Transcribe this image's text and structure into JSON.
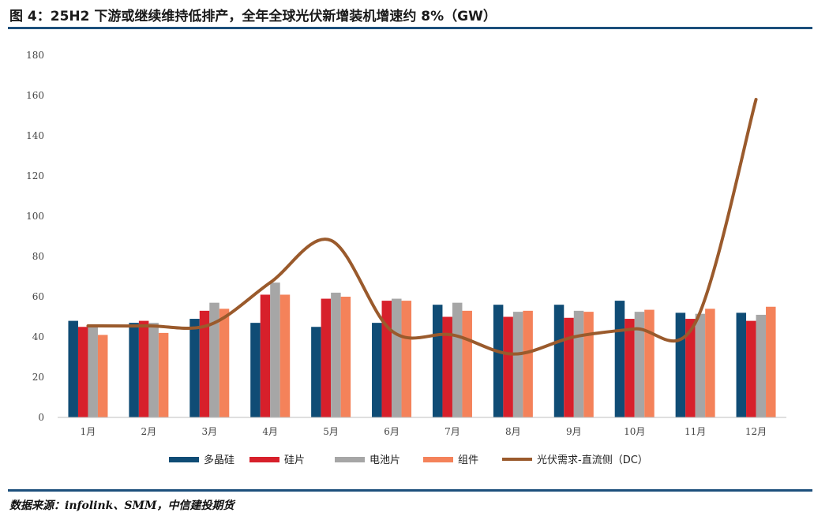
{
  "title": "图 4：25H2 下游或继续维持低排产，全年全球光伏新增装机增速约 8%（GW）",
  "source": "数据来源：infolink、SMM，中信建投期货",
  "chart_data": {
    "type": "bar",
    "categories": [
      "1月",
      "2月",
      "3月",
      "4月",
      "5月",
      "6月",
      "7月",
      "8月",
      "9月",
      "10月",
      "11月",
      "12月"
    ],
    "ylim": [
      0,
      180
    ],
    "yticks": [
      0,
      20,
      40,
      60,
      80,
      100,
      120,
      140,
      160,
      180
    ],
    "grid": false,
    "legend_position": "bottom",
    "series": [
      {
        "name": "多晶硅",
        "type": "bar",
        "color": "#0f4c75",
        "values": [
          48,
          47,
          49,
          47,
          45,
          47,
          56,
          56,
          56,
          58,
          52,
          52
        ]
      },
      {
        "name": "硅片",
        "type": "bar",
        "color": "#d7202b",
        "values": [
          45,
          48,
          53,
          61,
          59,
          58,
          50,
          50,
          49.5,
          49,
          49,
          48
        ]
      },
      {
        "name": "电池片",
        "type": "bar",
        "color": "#a6a6a6",
        "values": [
          46,
          47,
          57,
          67,
          62,
          59,
          57,
          52.5,
          53,
          52.5,
          51.5,
          51
        ]
      },
      {
        "name": "组件",
        "type": "bar",
        "color": "#f4825a",
        "values": [
          41,
          42,
          54,
          61,
          60,
          58,
          53,
          53,
          52.5,
          53.5,
          54,
          55
        ]
      },
      {
        "name": "光伏需求-直流侧（DC）",
        "type": "line",
        "color": "#9a5a2c",
        "values": [
          45.5,
          45.5,
          46,
          67,
          88,
          43,
          41,
          31.5,
          40,
          44,
          47,
          158
        ]
      }
    ]
  }
}
